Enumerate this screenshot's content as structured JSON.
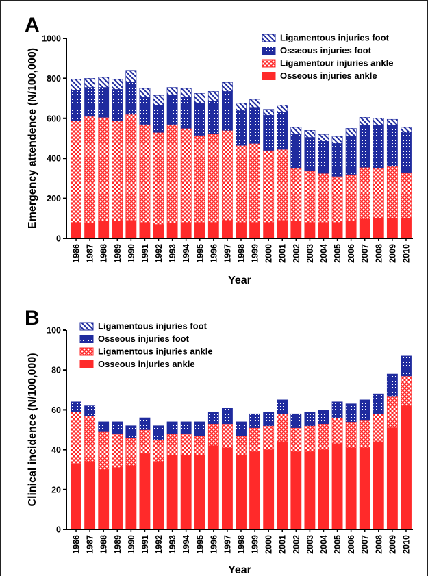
{
  "colors": {
    "osseous_ankle": "#ff2a2a",
    "ligamentous_ankle": "#ff2a2a",
    "osseous_foot": "#1f2b9e",
    "ligamentous_foot": "#1f2b9e",
    "hatch_bg": "#ffffff"
  },
  "chart_data": [
    {
      "panel": "A",
      "type": "bar",
      "stacked": true,
      "ylabel": "Emergency attendence (N/100,000)",
      "xlabel": "Year",
      "ylim": [
        0,
        1000
      ],
      "yticks": [
        0,
        200,
        400,
        600,
        800,
        1000
      ],
      "legend_position": "top-right",
      "categories": [
        "1986",
        "1987",
        "1988",
        "1989",
        "1990",
        "1991",
        "1992",
        "1993",
        "1994",
        "1995",
        "1996",
        "1997",
        "1998",
        "1999",
        "2000",
        "2001",
        "2002",
        "2003",
        "2004",
        "2005",
        "2006",
        "2007",
        "2008",
        "2009",
        "2010"
      ],
      "series": [
        {
          "name": "Osseous injuries ankle",
          "key": "osseous_ankle",
          "pattern": "solid",
          "values": [
            80,
            75,
            85,
            85,
            90,
            80,
            70,
            75,
            80,
            80,
            80,
            90,
            80,
            80,
            80,
            90,
            85,
            80,
            80,
            80,
            85,
            95,
            100,
            100,
            100
          ]
        },
        {
          "name": "Ligamentour injuries ankle",
          "key": "ligamentous_ankle",
          "pattern": "cross",
          "values": [
            510,
            535,
            520,
            505,
            530,
            490,
            460,
            495,
            470,
            435,
            445,
            450,
            385,
            395,
            360,
            355,
            265,
            260,
            245,
            230,
            235,
            260,
            250,
            260,
            230
          ]
        },
        {
          "name": "Osseous injuries foot",
          "key": "osseous_foot",
          "pattern": "dots",
          "values": [
            150,
            145,
            150,
            155,
            160,
            135,
            135,
            145,
            155,
            160,
            160,
            195,
            175,
            180,
            175,
            185,
            170,
            165,
            160,
            165,
            190,
            210,
            215,
            205,
            200
          ]
        },
        {
          "name": "Ligamentous injuries foot",
          "key": "ligamentous_foot",
          "pattern": "diag",
          "values": [
            55,
            45,
            50,
            50,
            60,
            45,
            50,
            40,
            45,
            50,
            50,
            45,
            35,
            40,
            30,
            35,
            35,
            35,
            35,
            35,
            40,
            40,
            35,
            30,
            25
          ]
        }
      ]
    },
    {
      "panel": "B",
      "type": "bar",
      "stacked": true,
      "ylabel": "Clinical incidence (N/100,000)",
      "xlabel": "Year",
      "ylim": [
        0,
        100
      ],
      "yticks": [
        0,
        20,
        40,
        60,
        80,
        100
      ],
      "legend_position": "top-left",
      "categories": [
        "1986",
        "1987",
        "1988",
        "1989",
        "1990",
        "1991",
        "1992",
        "1993",
        "1994",
        "1995",
        "1996",
        "1997",
        "1998",
        "1999",
        "2000",
        "2001",
        "2002",
        "2003",
        "2004",
        "2005",
        "2006",
        "2007",
        "2008",
        "2009",
        "2010"
      ],
      "series": [
        {
          "name": "Osseous injuries ankle",
          "key": "osseous_ankle",
          "pattern": "solid",
          "values": [
            33,
            34,
            30,
            31,
            32,
            38,
            34,
            37,
            37,
            37,
            42,
            41,
            37,
            39,
            40,
            44,
            39,
            39,
            40,
            43,
            41,
            41,
            44,
            51,
            62
          ]
        },
        {
          "name": "Ligamentous injuries ankle",
          "key": "ligamentous_ankle",
          "pattern": "cross",
          "values": [
            26,
            23,
            19,
            17,
            14,
            12,
            11,
            11,
            11,
            10,
            11,
            12,
            10,
            12,
            12,
            14,
            12,
            13,
            13,
            13,
            13,
            14,
            14,
            16,
            15
          ]
        },
        {
          "name": "Osseous injuries foot",
          "key": "osseous_foot",
          "pattern": "dots",
          "values": [
            5,
            5,
            5,
            6,
            6,
            6,
            7,
            6,
            6,
            7,
            6,
            8,
            7,
            7,
            7,
            7,
            7,
            7,
            7,
            8,
            9,
            10,
            10,
            11,
            10
          ]
        },
        {
          "name": "Ligamentous injuries foot",
          "key": "ligamentous_foot",
          "pattern": "diag",
          "values": [
            0,
            0,
            0,
            0,
            0,
            0,
            0,
            0,
            0,
            0,
            0,
            0,
            0,
            0,
            0,
            0,
            0,
            0,
            0,
            0,
            0,
            0,
            0,
            0,
            0
          ]
        }
      ]
    }
  ]
}
